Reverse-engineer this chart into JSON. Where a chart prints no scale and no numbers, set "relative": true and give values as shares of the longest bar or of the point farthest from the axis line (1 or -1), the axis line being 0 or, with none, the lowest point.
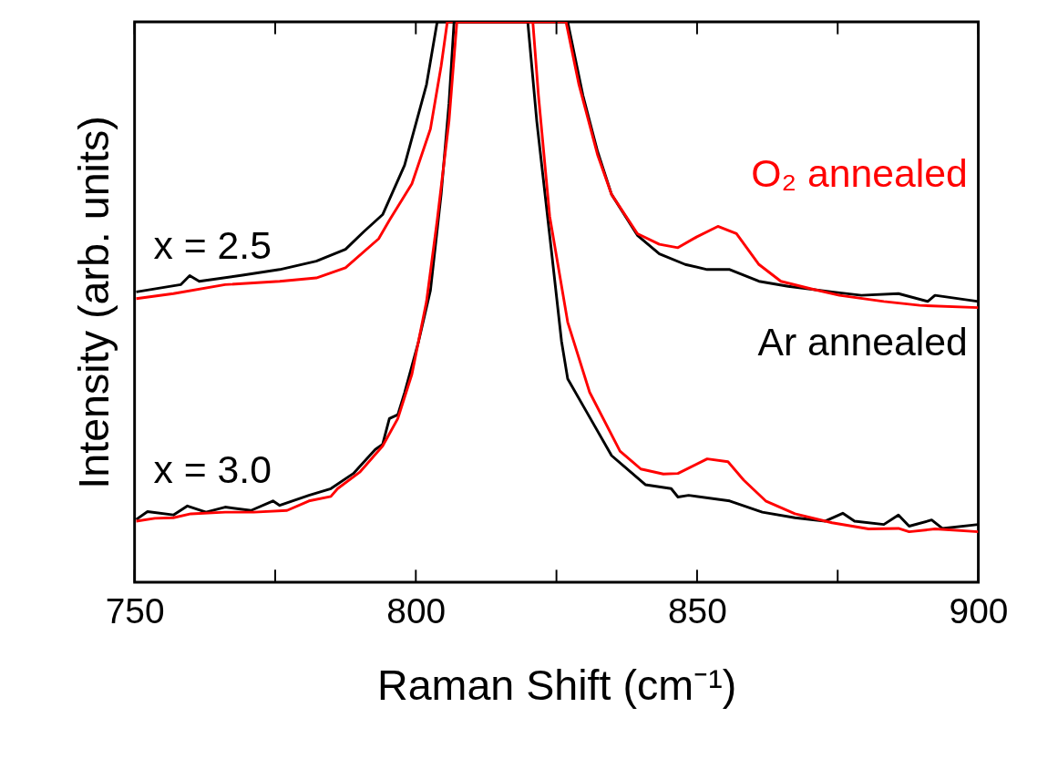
{
  "chart_data": {
    "type": "line",
    "relative": true,
    "xlabel": "Raman Shift (cm⁻¹)",
    "ylabel": "Intensity (arb. units)",
    "xlim": [
      750,
      900
    ],
    "xticks": [
      750,
      {
        "value": 775,
        "label": null
      },
      800,
      {
        "value": 825,
        "label": null
      },
      850,
      {
        "value": 875,
        "label": null
      },
      900
    ],
    "tick_labels": "x",
    "grid": false,
    "line_style": "solid",
    "marker": "none",
    "annotations": [
      "x = 2.5",
      "x = 3.0"
    ],
    "series": [
      {
        "name": "Ar annealed",
        "color": "#000000",
        "x": [
          750.3,
          758.2,
          759.8,
          761.5,
          769.2,
          775.8,
          782.3,
          787.5,
          790.8,
          794.1,
          798.0,
          801.9,
          803.8,
          827.0,
          829.7,
          832.3,
          834.8,
          839.4,
          843.3,
          847.9,
          851.8,
          855.8,
          861.0,
          866.2,
          874.0,
          879.2,
          885.8,
          891.0,
          892.3,
          900
        ],
        "values": [
          0.518,
          0.531,
          0.547,
          0.537,
          0.548,
          0.558,
          0.573,
          0.594,
          0.626,
          0.656,
          0.744,
          0.888,
          1.0,
          1.0,
          0.869,
          0.769,
          0.692,
          0.619,
          0.586,
          0.567,
          0.558,
          0.558,
          0.537,
          0.528,
          0.518,
          0.512,
          0.515,
          0.501,
          0.512,
          0.501
        ]
      },
      {
        "name": "O₂ annealed",
        "color": "#ff0000",
        "x": [
          750.3,
          756.9,
          766.1,
          775.8,
          782.3,
          787.5,
          793.4,
          795.3,
          799.3,
          802.6,
          804.5,
          805.6,
          826.7,
          829.0,
          832.3,
          834.8,
          839.4,
          843.3,
          846.6,
          849.9,
          853.7,
          857.0,
          861.0,
          864.9,
          870.1,
          875.3,
          883.2,
          889.6,
          900
        ],
        "values": [
          0.506,
          0.515,
          0.531,
          0.537,
          0.543,
          0.561,
          0.613,
          0.646,
          0.711,
          0.809,
          0.921,
          1.0,
          1.0,
          0.888,
          0.763,
          0.692,
          0.622,
          0.603,
          0.597,
          0.616,
          0.635,
          0.622,
          0.567,
          0.537,
          0.524,
          0.512,
          0.501,
          0.494,
          0.49
        ]
      },
      {
        "color": "#000000",
        "x": [
          750.3,
          752.3,
          756.9,
          759.4,
          762.7,
          766.1,
          770.7,
          774.6,
          775.8,
          781.0,
          784.9,
          788.9,
          792.8,
          794.1,
          795.3,
          796.8,
          798.0,
          800.5,
          802.6,
          804.5,
          805.9,
          806.8,
          819.9,
          821.5,
          824.1,
          825.9,
          827.0,
          830.3,
          834.8,
          840.8,
          845.4,
          846.6,
          848.5,
          855.8,
          861.6,
          867.4,
          872.8,
          875.9,
          878.0,
          883.2,
          885.8,
          887.7,
          891.7,
          893.6,
          900
        ],
        "values": [
          0.112,
          0.126,
          0.12,
          0.136,
          0.125,
          0.134,
          0.128,
          0.145,
          0.137,
          0.155,
          0.167,
          0.194,
          0.237,
          0.246,
          0.292,
          0.299,
          0.338,
          0.43,
          0.521,
          0.692,
          0.855,
          1.0,
          1.0,
          0.823,
          0.592,
          0.43,
          0.363,
          0.305,
          0.226,
          0.174,
          0.167,
          0.152,
          0.155,
          0.145,
          0.125,
          0.115,
          0.109,
          0.123,
          0.109,
          0.103,
          0.12,
          0.1,
          0.111,
          0.096,
          0.103
        ]
      },
      {
        "color": "#ff0000",
        "x": [
          750.3,
          753.6,
          756.9,
          760.0,
          766.1,
          771.2,
          777.1,
          781.0,
          784.9,
          786.1,
          790.1,
          794.1,
          796.8,
          799.3,
          801.9,
          803.8,
          805.9,
          807.3,
          820.8,
          821.8,
          823.8,
          827.0,
          830.9,
          836.3,
          840.0,
          844.0,
          846.6,
          851.8,
          855.5,
          858.3,
          862.2,
          867.4,
          874.0,
          880.5,
          885.8,
          887.7,
          892.3,
          900
        ],
        "values": [
          0.109,
          0.114,
          0.115,
          0.122,
          0.125,
          0.125,
          0.128,
          0.145,
          0.153,
          0.167,
          0.197,
          0.243,
          0.292,
          0.371,
          0.501,
          0.646,
          0.823,
          1.0,
          1.0,
          0.869,
          0.653,
          0.464,
          0.339,
          0.234,
          0.202,
          0.193,
          0.194,
          0.22,
          0.215,
          0.182,
          0.145,
          0.122,
          0.106,
          0.095,
          0.096,
          0.09,
          0.095,
          0.09
        ]
      }
    ]
  }
}
